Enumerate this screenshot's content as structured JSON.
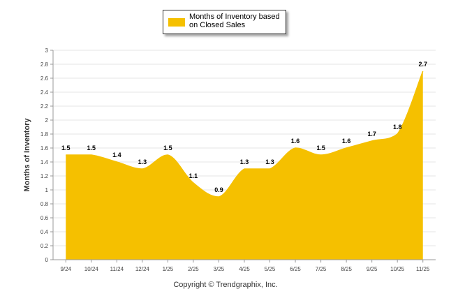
{
  "colors": {
    "series": "#F5C000",
    "grid": "#e6e6e6",
    "axis": "#999999"
  },
  "legend": {
    "label": "Months of Inventory based on Closed Sales"
  },
  "copyright": "Copyright © Trendgraphix, Inc.",
  "chart_data": {
    "type": "area",
    "title": "",
    "xlabel": "",
    "ylabel": "Months of Inventory",
    "ylim": [
      0,
      3
    ],
    "yticks": [
      "0",
      "0.2",
      "0.4",
      "0.6",
      "0.8",
      "1",
      "1.2",
      "1.4",
      "1.6",
      "1.8",
      "2",
      "2.2",
      "2.4",
      "2.6",
      "2.8",
      "3"
    ],
    "categories": [
      "9/24",
      "10/24",
      "11/24",
      "12/24",
      "1/25",
      "2/25",
      "3/25",
      "4/25",
      "5/25",
      "6/25",
      "7/25",
      "8/25",
      "9/25",
      "10/25",
      "11/25"
    ],
    "series": [
      {
        "name": "Months of Inventory based on Closed Sales",
        "values": [
          1.5,
          1.5,
          1.4,
          1.3,
          1.5,
          1.1,
          0.9,
          1.3,
          1.3,
          1.6,
          1.5,
          1.6,
          1.7,
          1.8,
          2.7
        ],
        "labels": [
          "1.5",
          "1.5",
          "1.4",
          "1.3",
          "1.5",
          "1.1",
          "0.9",
          "1.3",
          "1.3",
          "1.6",
          "1.5",
          "1.6",
          "1.7",
          "1.8",
          "2.7"
        ]
      }
    ],
    "legend_position": "top-center",
    "grid": true
  }
}
